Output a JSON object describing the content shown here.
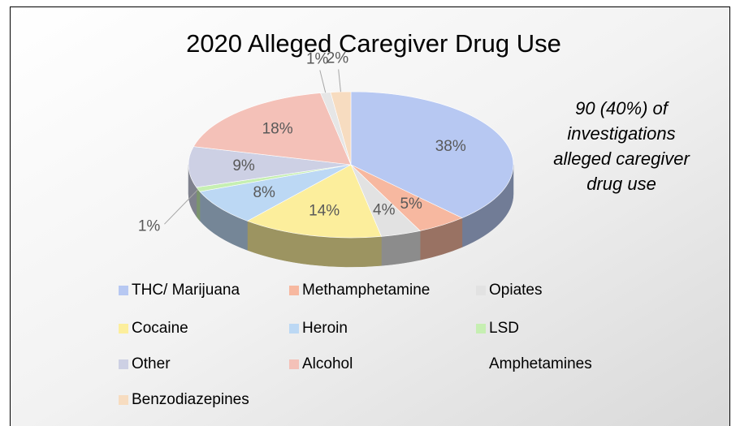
{
  "chart_data": {
    "type": "pie",
    "title": "2020 Alleged Caregiver Drug Use",
    "annotation": "90 (40%) of investigations alleged caregiver drug use",
    "categories": [
      "THC/ Marijuana",
      "Methamphetamine",
      "Opiates",
      "Cocaine",
      "Heroin",
      "LSD",
      "Other",
      "Alcohol",
      "Amphetamines",
      "Benzodiazepines"
    ],
    "values": [
      38,
      5,
      4,
      14,
      8,
      1,
      9,
      18,
      1,
      2
    ],
    "value_labels": [
      "38%",
      "5%",
      "4%",
      "14%",
      "8%",
      "1%",
      "9%",
      "18%",
      "1%",
      "2%"
    ],
    "colors": [
      "#b7c8f2",
      "#f7b8a0",
      "#e2e2e2",
      "#fcee9c",
      "#bcd8f4",
      "#c6efb2",
      "#cdd0e4",
      "#f4c1b8",
      "#e6e6e6",
      "#f7dcc0"
    ],
    "legend": "bottom"
  }
}
